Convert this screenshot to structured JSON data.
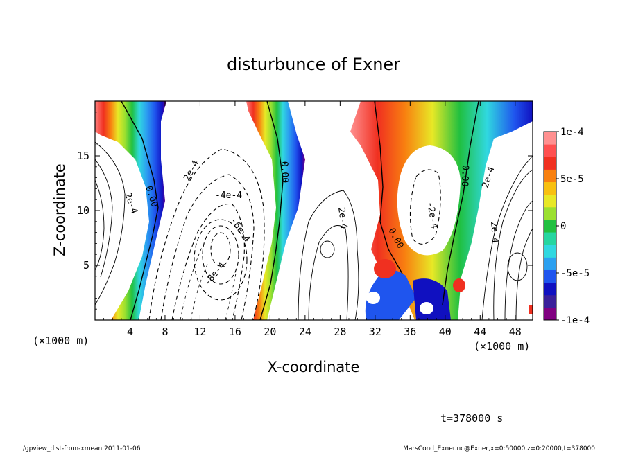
{
  "chart_data": {
    "type": "heatmap",
    "title": "disturbunce of Exner",
    "xlabel": "X-coordinate",
    "ylabel": "Z-coordinate",
    "x_unit": "(×1000 m)",
    "y_unit": "(×1000 m)",
    "xlim": [
      0,
      50
    ],
    "ylim": [
      0,
      20
    ],
    "x_ticks": [
      "4",
      "8",
      "12",
      "16",
      "20",
      "24",
      "28",
      "32",
      "36",
      "40",
      "44",
      "48"
    ],
    "y_ticks": [
      "5",
      "10",
      "15"
    ],
    "colorbar": {
      "ticks": [
        "1e-4",
        "5e-5",
        "0",
        "-5e-5",
        "-1e-4"
      ],
      "range": [
        -0.0001,
        0.0001
      ],
      "colors": [
        "#800080",
        "#3a1f9a",
        "#1010c0",
        "#1f55ee",
        "#2ca0f0",
        "#30d8e0",
        "#25d6a0",
        "#20c040",
        "#9be030",
        "#e8e826",
        "#f8c010",
        "#f88010",
        "#f03020",
        "#ff5050",
        "#ff9090"
      ]
    },
    "contour_labels": [
      "0.00",
      "0.00",
      "0.00",
      "0.00",
      "2e-4",
      "2e-4",
      "2e-4",
      "2e-4",
      "-4e-4",
      "-6e-4",
      "-8e-4",
      "-2e-4",
      "2e-4"
    ],
    "summary_time": "t=378000 s"
  },
  "footer": {
    "script": "./gpview_dist-from-xmean  2011-01-06",
    "source": "MarsCond_Exner.nc@Exner,x=0:50000,z=0:20000,t=378000"
  }
}
